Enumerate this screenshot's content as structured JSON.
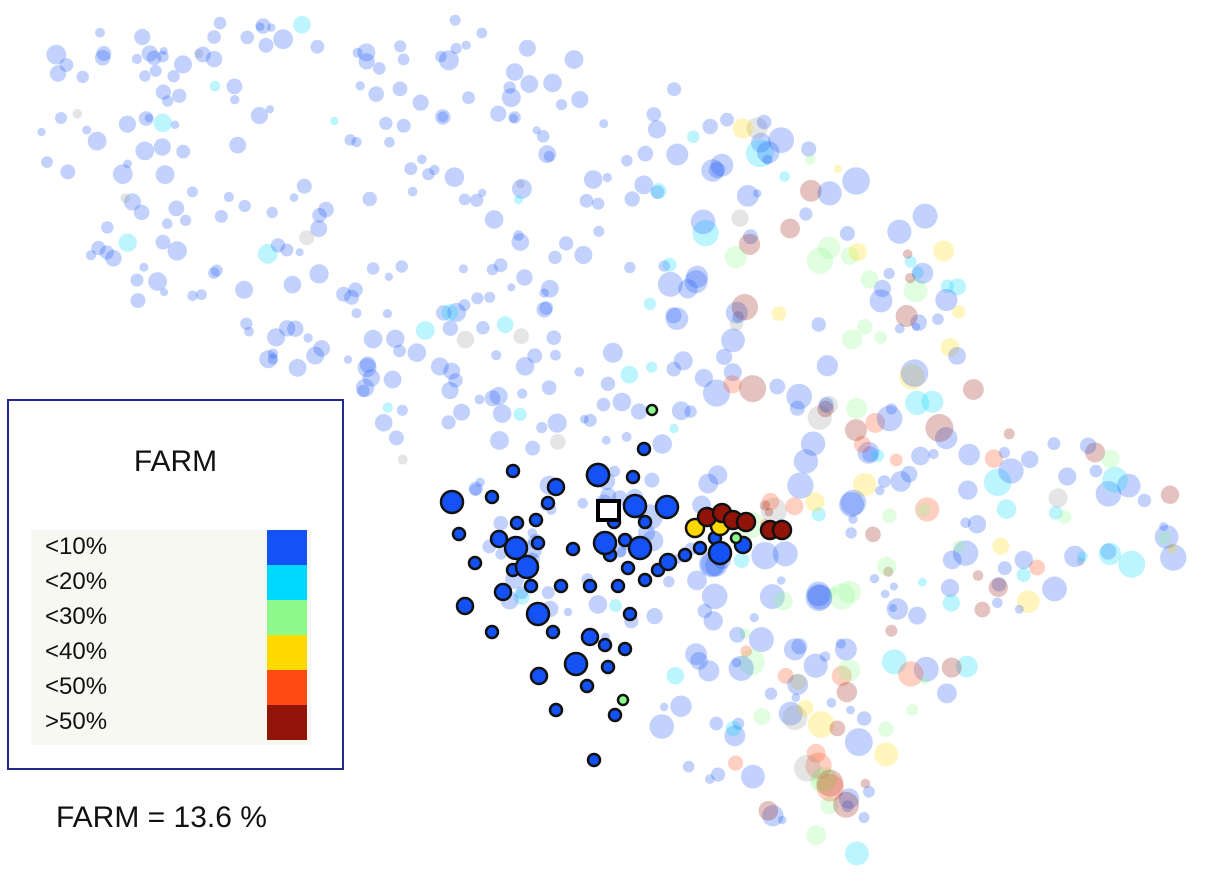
{
  "legend": {
    "title": "FARM",
    "entries": [
      {
        "label": "<10%",
        "color": "#1452f5"
      },
      {
        "label": "<20%",
        "color": "#00d8ff"
      },
      {
        "label": "<30%",
        "color": "#8cfa8c"
      },
      {
        "label": "<40%",
        "color": "#ffd800"
      },
      {
        "label": "<50%",
        "color": "#ff4a14"
      },
      {
        "label": ">50%",
        "color": "#921408"
      }
    ]
  },
  "summary": {
    "text": "FARM = 13.6 %"
  },
  "colors": {
    "background": "#ffffff",
    "legend_border": "#1f2a8c",
    "marker_outline": "#111111",
    "no_data": "#9a9a9a"
  }
}
